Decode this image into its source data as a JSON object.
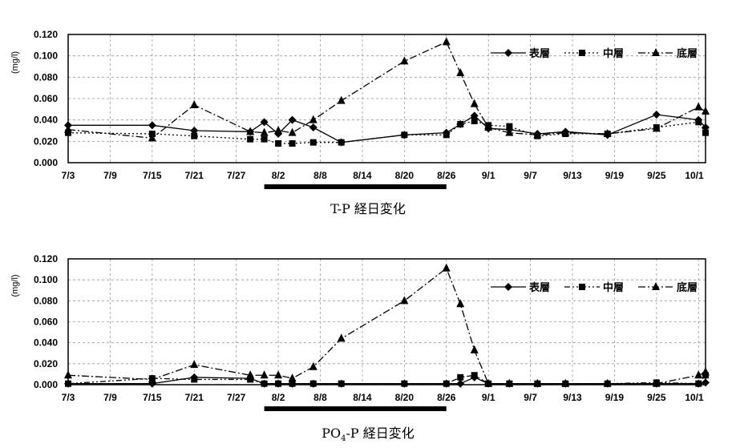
{
  "chart_data": [
    {
      "type": "line",
      "title": "T-P 経日変化",
      "ylabel": "(mg/l)",
      "ylim": [
        0,
        0.12
      ],
      "yticks": [
        "0.000",
        "0.020",
        "0.040",
        "0.060",
        "0.080",
        "0.100",
        "0.120"
      ],
      "xticks": [
        "7/3",
        "7/9",
        "7/15",
        "7/21",
        "7/27",
        "8/2",
        "8/8",
        "8/14",
        "8/20",
        "8/26",
        "9/1",
        "9/7",
        "9/13",
        "9/19",
        "9/25",
        "10/1"
      ],
      "grid": true,
      "legend_position": "top-right",
      "highlight_bar": [
        "7/31",
        "8/26"
      ],
      "series": [
        {
          "name": "表層",
          "marker": "diamond",
          "dash": "solid",
          "points": [
            [
              "7/3",
              0.035
            ],
            [
              "7/15",
              0.035
            ],
            [
              "7/21",
              0.03
            ],
            [
              "7/29",
              0.029
            ],
            [
              "7/31",
              0.038
            ],
            [
              "8/2",
              0.027
            ],
            [
              "8/4",
              0.04
            ],
            [
              "8/7",
              0.033
            ],
            [
              "8/11",
              0.019
            ],
            [
              "8/20",
              0.026
            ],
            [
              "8/26",
              0.028
            ],
            [
              "8/28",
              0.036
            ],
            [
              "8/30",
              0.044
            ],
            [
              "9/1",
              0.032
            ],
            [
              "9/4",
              0.031
            ],
            [
              "9/8",
              0.027
            ],
            [
              "9/12",
              0.029
            ],
            [
              "9/18",
              0.026
            ],
            [
              "9/25",
              0.045
            ],
            [
              "10/1",
              0.04
            ],
            [
              "10/2",
              0.033
            ]
          ]
        },
        {
          "name": "中層",
          "marker": "square",
          "dash": "dotted",
          "points": [
            [
              "7/3",
              0.028
            ],
            [
              "7/15",
              0.027
            ],
            [
              "7/21",
              0.025
            ],
            [
              "7/29",
              0.022
            ],
            [
              "7/31",
              0.022
            ],
            [
              "8/2",
              0.018
            ],
            [
              "8/4",
              0.018
            ],
            [
              "8/7",
              0.019
            ],
            [
              "8/11",
              0.019
            ],
            [
              "8/20",
              0.026
            ],
            [
              "8/26",
              0.026
            ],
            [
              "8/28",
              0.036
            ],
            [
              "8/30",
              0.039
            ],
            [
              "9/1",
              0.035
            ],
            [
              "9/4",
              0.034
            ],
            [
              "9/8",
              0.025
            ],
            [
              "9/12",
              0.027
            ],
            [
              "9/18",
              0.027
            ],
            [
              "9/25",
              0.033
            ],
            [
              "10/1",
              0.038
            ],
            [
              "10/2",
              0.028
            ]
          ]
        },
        {
          "name": "底層",
          "marker": "triangle",
          "dash": "dashdot",
          "points": [
            [
              "7/3",
              0.031
            ],
            [
              "7/15",
              0.023
            ],
            [
              "7/21",
              0.054
            ],
            [
              "7/29",
              0.029
            ],
            [
              "7/31",
              0.028
            ],
            [
              "8/2",
              0.03
            ],
            [
              "8/4",
              0.028
            ],
            [
              "8/7",
              0.04
            ],
            [
              "8/11",
              0.058
            ],
            [
              "8/20",
              0.095
            ],
            [
              "8/26",
              0.113
            ],
            [
              "8/28",
              0.084
            ],
            [
              "8/30",
              0.055
            ],
            [
              "9/1",
              0.033
            ],
            [
              "9/4",
              0.028
            ],
            [
              "9/8",
              0.026
            ],
            [
              "9/12",
              0.028
            ],
            [
              "9/18",
              0.027
            ],
            [
              "9/25",
              0.032
            ],
            [
              "10/1",
              0.052
            ],
            [
              "10/2",
              0.048
            ]
          ]
        }
      ]
    },
    {
      "type": "line",
      "title": "PO₄-P 経日変化",
      "title_prefix": "PO",
      "title_sub": "4",
      "title_suffix": "-P 経日変化",
      "ylabel": "(mg/l)",
      "ylim": [
        0,
        0.12
      ],
      "yticks": [
        "0.000",
        "0.020",
        "0.040",
        "0.060",
        "0.080",
        "0.100",
        "0.120"
      ],
      "xticks": [
        "7/3",
        "7/9",
        "7/15",
        "7/21",
        "7/27",
        "8/2",
        "8/8",
        "8/14",
        "8/20",
        "8/26",
        "9/1",
        "9/7",
        "9/13",
        "9/19",
        "9/25",
        "10/1"
      ],
      "grid": true,
      "legend_position": "top-right",
      "highlight_bar": [
        "7/31",
        "8/26"
      ],
      "series": [
        {
          "name": "表層",
          "marker": "diamond",
          "dash": "solid",
          "points": [
            [
              "7/3",
              0.001
            ],
            [
              "7/15",
              0.001
            ],
            [
              "7/21",
              0.007
            ],
            [
              "7/29",
              0.006
            ],
            [
              "7/31",
              0.001
            ],
            [
              "8/2",
              0.001
            ],
            [
              "8/4",
              0.001
            ],
            [
              "8/7",
              0.001
            ],
            [
              "8/11",
              0.001
            ],
            [
              "8/20",
              0.001
            ],
            [
              "8/26",
              0.001
            ],
            [
              "8/28",
              0.001
            ],
            [
              "8/30",
              0.007
            ],
            [
              "9/1",
              0.001
            ],
            [
              "9/4",
              0.001
            ],
            [
              "9/8",
              0.001
            ],
            [
              "9/12",
              0.001
            ],
            [
              "9/18",
              0.001
            ],
            [
              "9/25",
              0.001
            ],
            [
              "10/1",
              0.001
            ],
            [
              "10/2",
              0.002
            ]
          ]
        },
        {
          "name": "中層",
          "marker": "square",
          "dash": "dashdotdot",
          "points": [
            [
              "7/3",
              0.001
            ],
            [
              "7/15",
              0.006
            ],
            [
              "7/21",
              0.005
            ],
            [
              "7/29",
              0.005
            ],
            [
              "7/31",
              0.001
            ],
            [
              "8/2",
              0.001
            ],
            [
              "8/4",
              0.001
            ],
            [
              "8/7",
              0.001
            ],
            [
              "8/11",
              0.001
            ],
            [
              "8/20",
              0.001
            ],
            [
              "8/26",
              0.001
            ],
            [
              "8/28",
              0.007
            ],
            [
              "8/30",
              0.009
            ],
            [
              "9/1",
              0.001
            ],
            [
              "9/4",
              0.001
            ],
            [
              "9/8",
              0.001
            ],
            [
              "9/12",
              0.001
            ],
            [
              "9/18",
              0.001
            ],
            [
              "9/25",
              0.002
            ],
            [
              "10/1",
              0.001
            ],
            [
              "10/2",
              0.009
            ]
          ]
        },
        {
          "name": "底層",
          "marker": "triangle",
          "dash": "dashdot",
          "points": [
            [
              "7/3",
              0.009
            ],
            [
              "7/15",
              0.005
            ],
            [
              "7/21",
              0.019
            ],
            [
              "7/29",
              0.009
            ],
            [
              "7/31",
              0.009
            ],
            [
              "8/2",
              0.009
            ],
            [
              "8/4",
              0.006
            ],
            [
              "8/7",
              0.017
            ],
            [
              "8/11",
              0.044
            ],
            [
              "8/20",
              0.08
            ],
            [
              "8/26",
              0.111
            ],
            [
              "8/28",
              0.077
            ],
            [
              "8/30",
              0.033
            ],
            [
              "9/1",
              0.001
            ],
            [
              "9/4",
              0.001
            ],
            [
              "9/8",
              0.001
            ],
            [
              "9/12",
              0.001
            ],
            [
              "9/18",
              0.001
            ],
            [
              "9/25",
              0.001
            ],
            [
              "10/1",
              0.009
            ],
            [
              "10/2",
              0.012
            ]
          ]
        }
      ]
    }
  ]
}
